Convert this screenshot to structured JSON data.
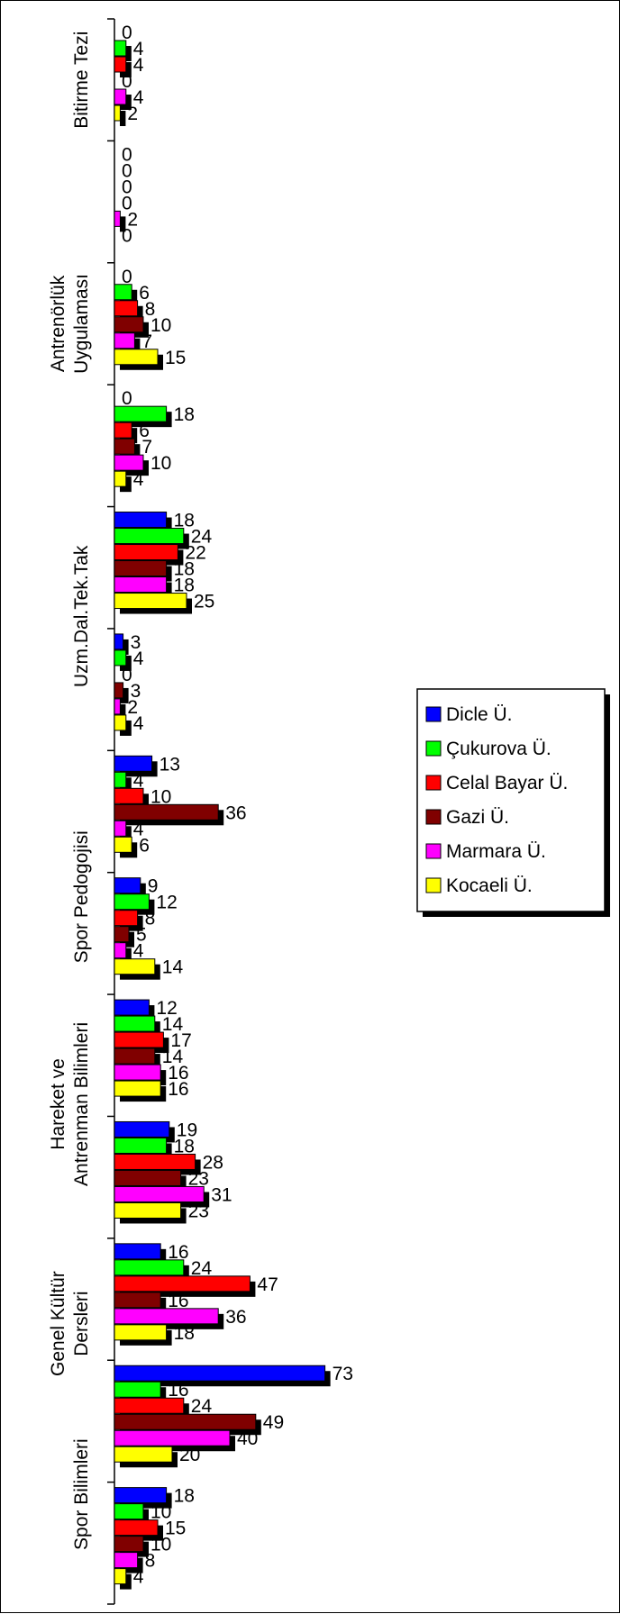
{
  "chart_data": {
    "type": "bar",
    "orientation": "horizontal",
    "category_labels": [
      {
        "text": "Bitirme Tezi",
        "lines": [
          "Bitirme Tezi"
        ]
      },
      {
        "text": "Antrenörlük Uygulaması",
        "lines": [
          "Antrenörlük",
          "Uygulaması"
        ]
      },
      {
        "text": "Uzm.Dal.Tek.Tak",
        "lines": [
          "Uzm.Dal.Tek.Tak"
        ]
      },
      {
        "text": "Spor Pedogojisi",
        "lines": [
          "Spor Pedogojisi"
        ]
      },
      {
        "text": "Hareket ve Antrenman Bilimleri",
        "lines": [
          "Hareket ve",
          "Antrenman Bilimleri"
        ]
      },
      {
        "text": "Genel Kültür Dersleri",
        "lines": [
          "Genel Kültür",
          "Dersleri"
        ]
      },
      {
        "text": "Spor Bilimleri",
        "lines": [
          "Spor Bilimleri"
        ]
      }
    ],
    "series": [
      {
        "name": "Dicle Ü.",
        "color": "#0000ff",
        "shadow": "#000000"
      },
      {
        "name": "Çukurova Ü.",
        "color": "#00ff00",
        "shadow": "#000000"
      },
      {
        "name": "Celal Bayar Ü.",
        "color": "#ff0000",
        "shadow": "#000000"
      },
      {
        "name": "Gazi Ü.",
        "color": "#800000",
        "shadow": "#000000"
      },
      {
        "name": "Marmara Ü.",
        "color": "#ff00ff",
        "shadow": "#000000"
      },
      {
        "name": "Kocaeli Ü.",
        "color": "#ffff00",
        "shadow": "#000000"
      }
    ],
    "groups": [
      [
        0,
        4,
        4,
        0,
        4,
        2
      ],
      [
        0,
        0,
        0,
        0,
        2,
        0
      ],
      [
        0,
        6,
        8,
        10,
        7,
        15
      ],
      [
        0,
        18,
        6,
        7,
        10,
        4
      ],
      [
        18,
        24,
        22,
        18,
        18,
        25
      ],
      [
        3,
        4,
        0,
        3,
        2,
        4
      ],
      [
        13,
        4,
        10,
        36,
        4,
        6
      ],
      [
        9,
        12,
        8,
        5,
        4,
        14
      ],
      [
        12,
        14,
        17,
        14,
        16,
        16
      ],
      [
        19,
        18,
        28,
        23,
        31,
        23
      ],
      [
        16,
        24,
        47,
        16,
        36,
        18
      ],
      [
        73,
        16,
        24,
        49,
        40,
        20
      ],
      [
        18,
        10,
        15,
        10,
        8,
        4
      ]
    ],
    "xlim": [
      0,
      75
    ],
    "legend": "right",
    "grid": false
  }
}
